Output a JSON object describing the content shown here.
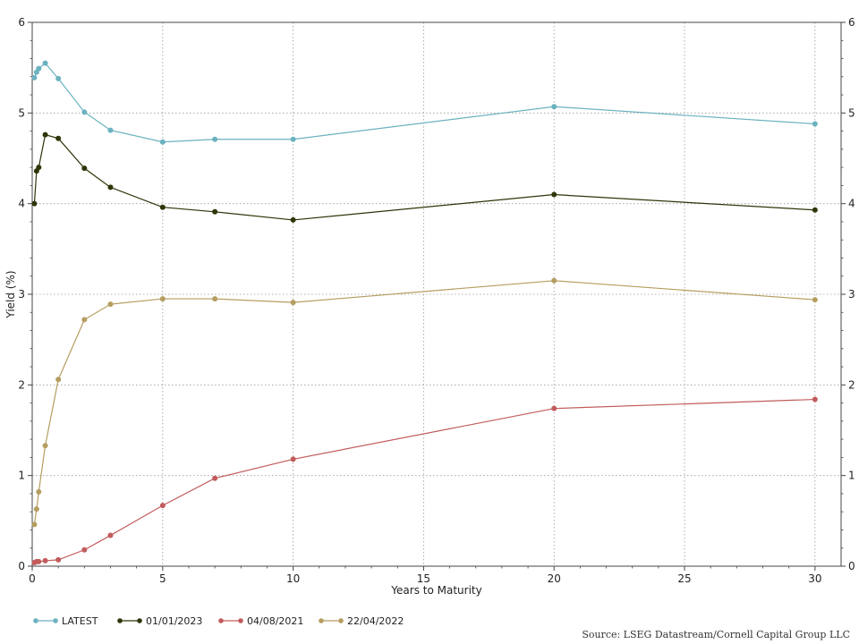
{
  "chart_data": {
    "type": "line",
    "xlabel": "Years to Maturity",
    "ylabel": "Yield (%)",
    "xlim": [
      0,
      31
    ],
    "ylim": [
      0,
      6
    ],
    "x_ticks": [
      0,
      5,
      10,
      15,
      20,
      25,
      30
    ],
    "y_ticks": [
      0,
      1,
      2,
      3,
      4,
      5,
      6
    ],
    "x": [
      0.083,
      0.167,
      0.25,
      0.5,
      1,
      2,
      3,
      5,
      7,
      10,
      20,
      30
    ],
    "grid": true,
    "legend_position": "bottom-left",
    "source": "Source: LSEG Datastream/Cornell Capital Group LLC",
    "series": [
      {
        "name": "LATEST",
        "color": "#6bb2bf",
        "values": [
          5.39,
          5.45,
          5.49,
          5.55,
          5.38,
          5.01,
          4.81,
          4.68,
          4.71,
          4.71,
          5.07,
          4.88
        ]
      },
      {
        "name": "01/01/2023",
        "color": "#2e3508",
        "values": [
          4.0,
          4.36,
          4.4,
          4.76,
          4.72,
          4.39,
          4.18,
          3.96,
          3.91,
          3.82,
          4.1,
          3.93
        ]
      },
      {
        "name": "04/08/2021",
        "color": "#c25b5b",
        "values": [
          0.04,
          0.05,
          0.05,
          0.06,
          0.07,
          0.18,
          0.34,
          0.67,
          0.97,
          1.18,
          1.74,
          1.84
        ]
      },
      {
        "name": "22/04/2022",
        "color": "#b59d5f",
        "values": [
          0.46,
          0.63,
          0.82,
          1.33,
          2.06,
          2.72,
          2.89,
          2.95,
          2.95,
          2.91,
          3.15,
          2.94
        ]
      }
    ]
  }
}
